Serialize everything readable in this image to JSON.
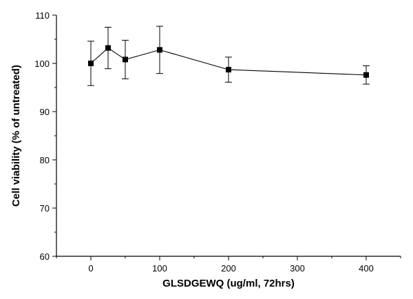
{
  "chart_data": {
    "type": "line",
    "title": "",
    "xlabel": "GLSDGEWQ (ug/ml, 72hrs)",
    "ylabel": "Cell viability (% of untreated)",
    "xlim": [
      -50,
      450
    ],
    "ylim": [
      60,
      110
    ],
    "xticks": [
      0,
      100,
      200,
      300,
      400
    ],
    "yticks": [
      60,
      70,
      80,
      90,
      100,
      110
    ],
    "grid": false,
    "legend": "none",
    "series": [
      {
        "x": [
          0,
          25,
          50,
          100,
          200,
          400
        ],
        "y": [
          100.0,
          103.2,
          100.8,
          102.8,
          98.7,
          97.6
        ],
        "error": [
          4.6,
          4.3,
          4.0,
          4.9,
          2.6,
          1.9
        ],
        "marker": "square",
        "color": "#000000"
      }
    ]
  }
}
